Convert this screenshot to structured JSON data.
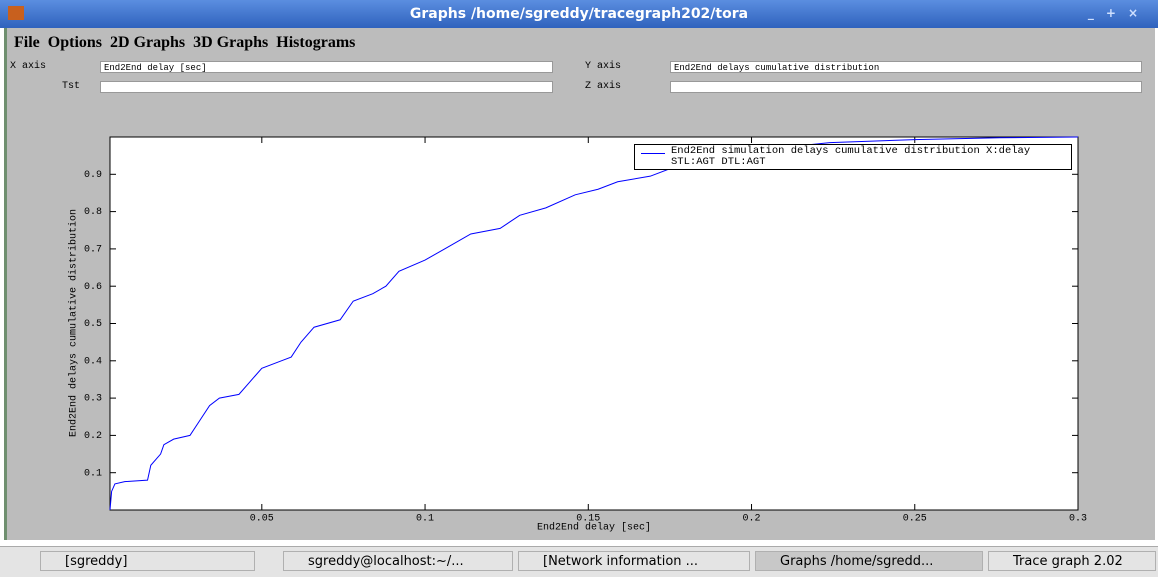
{
  "window": {
    "title": "Graphs  /home/sgreddy/tracegraph202/tora"
  },
  "menu": [
    "File",
    "Options",
    "2D Graphs",
    "3D Graphs",
    "Histograms"
  ],
  "fields": [
    {
      "label": "X axis",
      "value": "End2End delay [sec]"
    },
    {
      "label": "Y axis",
      "value": "End2End delays cumulative distribution"
    },
    {
      "label": "Tst"
    },
    {
      "label": "Z axis"
    }
  ],
  "chart_data": {
    "type": "line",
    "xlabel": "End2End delay [sec]",
    "ylabel": "End2End delays cumulative distribution",
    "x": [
      0.0035,
      0.004,
      0.005,
      0.008,
      0.015,
      0.016,
      0.019,
      0.02,
      0.023,
      0.028,
      0.031,
      0.034,
      0.037,
      0.043,
      0.046,
      0.05,
      0.056,
      0.059,
      0.062,
      0.066,
      0.074,
      0.078,
      0.084,
      0.088,
      0.092,
      0.1,
      0.106,
      0.114,
      0.123,
      0.129,
      0.137,
      0.146,
      0.153,
      0.159,
      0.169,
      0.178,
      0.184,
      0.202,
      0.224,
      0.25,
      0.276,
      0.3
    ],
    "series": [
      {
        "name": "End2End simulation delays cumulative distribution X:delay STL:AGT DTL:AGT",
        "color": "#0000ff",
        "values": [
          0,
          0.05,
          0.07,
          0.076,
          0.08,
          0.12,
          0.15,
          0.175,
          0.19,
          0.2,
          0.24,
          0.28,
          0.3,
          0.31,
          0.34,
          0.38,
          0.4,
          0.41,
          0.45,
          0.49,
          0.51,
          0.56,
          0.58,
          0.6,
          0.64,
          0.67,
          0.7,
          0.74,
          0.755,
          0.79,
          0.81,
          0.845,
          0.86,
          0.88,
          0.895,
          0.925,
          0.94,
          0.965,
          0.985,
          0.993,
          0.998,
          1.0
        ]
      }
    ],
    "xlim": [
      0.0035,
      0.3
    ],
    "ylim": [
      0,
      1
    ],
    "xticks": [
      0.05,
      0.1,
      0.15,
      0.2,
      0.25,
      0.3
    ],
    "yticks": [
      0.1,
      0.2,
      0.3,
      0.4,
      0.5,
      0.6,
      0.7,
      0.8,
      0.9
    ],
    "legend": "upper-right"
  },
  "taskbar": [
    "[sgreddy]",
    "sgreddy@localhost:~/...",
    "[Network information ...",
    "Graphs  /home/sgredd...",
    "Trace graph 2.02"
  ]
}
